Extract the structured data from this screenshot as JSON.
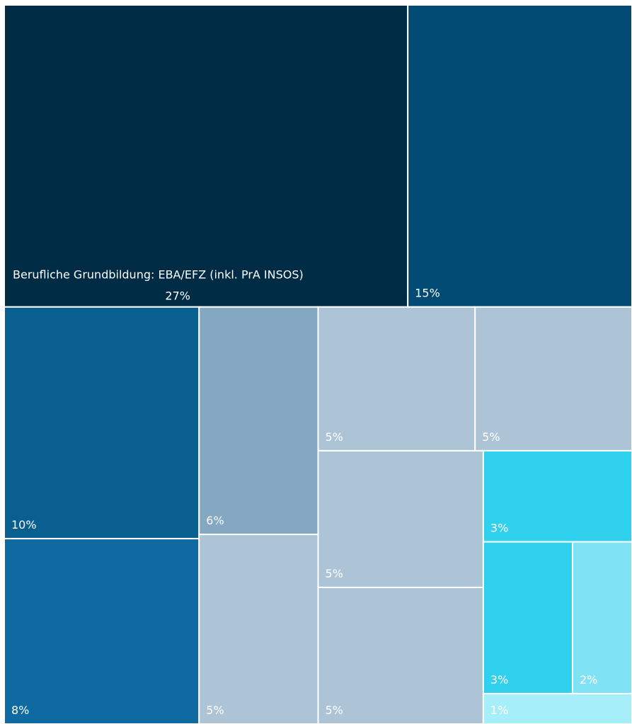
{
  "chart_data": {
    "type": "treemap",
    "categories": [
      "Berufliche Grundbildung: EBA/EFZ (inkl. PrA INSOS)",
      null,
      null,
      null,
      null,
      null,
      null,
      null,
      null,
      null,
      null,
      null,
      null,
      null
    ],
    "values": [
      27,
      15,
      10,
      8,
      6,
      5,
      5,
      5,
      5,
      5,
      3,
      3,
      2,
      1
    ],
    "value_labels": [
      "27%",
      "15%",
      "10%",
      "8%",
      "6%",
      "5%",
      "5%",
      "5%",
      "5%",
      "5%",
      "3%",
      "3%",
      "2%",
      "1%"
    ],
    "colors": [
      "#002b45",
      "#004a73",
      "#0a5f91",
      "#0e6aa0",
      "#84a8c1",
      "#adc4d7",
      "#adc4d7",
      "#adc4d7",
      "#adc4d7",
      "#adc4d7",
      "#2fd1ee",
      "#2fd1ee",
      "#7fe3f5",
      "#a6eefa"
    ]
  }
}
